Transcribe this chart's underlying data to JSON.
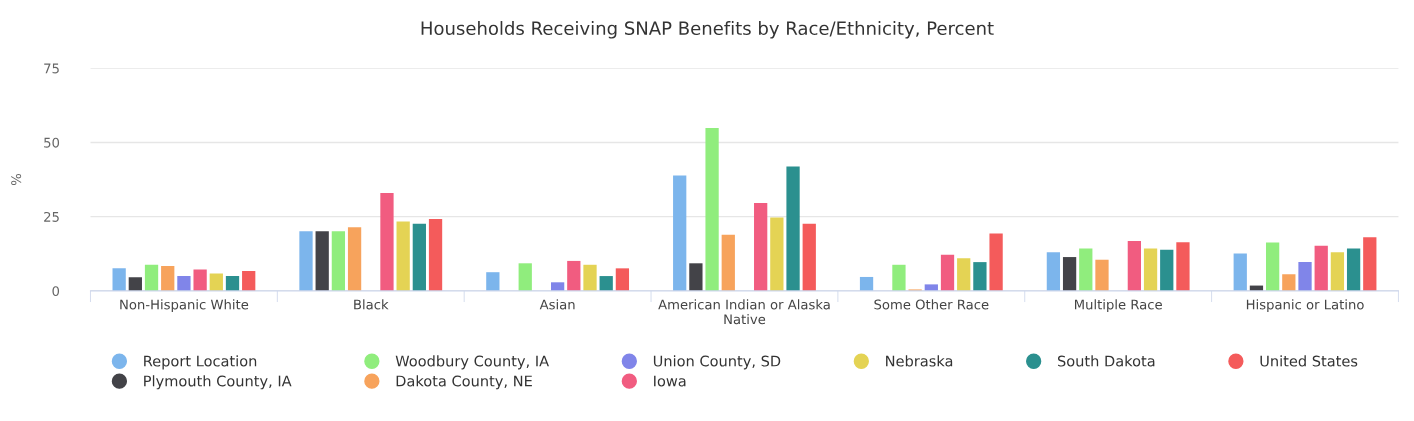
{
  "chart_data": {
    "type": "bar",
    "title": "Households Receiving SNAP Benefits by Race/Ethnicity, Percent",
    "ylabel": "%",
    "categories": [
      "Non-Hispanic White",
      "Black",
      "Asian",
      "American Indian or Alaska Native",
      "Some Other Race",
      "Multiple Race",
      "Hispanic or Latino"
    ],
    "series": [
      {
        "name": "Report Location",
        "color": "#7cb5ec",
        "values": [
          7.6,
          20.1,
          6.3,
          38.9,
          4.7,
          13.0,
          12.6
        ]
      },
      {
        "name": "Plymouth County, IA",
        "color": "#434348",
        "values": [
          4.6,
          20.1,
          null,
          9.3,
          null,
          11.4,
          1.8
        ]
      },
      {
        "name": "Woodbury County, IA",
        "color": "#90ed7d",
        "values": [
          8.8,
          20.1,
          9.3,
          54.9,
          8.8,
          14.3,
          16.3
        ]
      },
      {
        "name": "Dakota County, NE",
        "color": "#f7a35c",
        "values": [
          8.4,
          21.4,
          null,
          18.9,
          0.5,
          10.5,
          5.6
        ]
      },
      {
        "name": "Union County, SD",
        "color": "#8085e9",
        "values": [
          5.0,
          null,
          2.9,
          null,
          2.2,
          null,
          9.7
        ]
      },
      {
        "name": "Iowa",
        "color": "#f15c80",
        "values": [
          7.2,
          33.0,
          10.1,
          29.6,
          12.2,
          16.8,
          15.2
        ]
      },
      {
        "name": "Nebraska",
        "color": "#e4d354",
        "values": [
          5.9,
          23.4,
          8.8,
          24.7,
          11.0,
          14.3,
          13.0
        ]
      },
      {
        "name": "South Dakota",
        "color": "#2b908f",
        "values": [
          5.0,
          22.6,
          5.0,
          41.9,
          9.7,
          13.9,
          14.3
        ]
      },
      {
        "name": "United States",
        "color": "#f45b5b",
        "values": [
          6.7,
          24.2,
          7.6,
          22.6,
          19.3,
          16.4,
          18.1
        ]
      }
    ],
    "ylim": [
      0,
      75
    ],
    "yticks": [
      0,
      25,
      50,
      75
    ],
    "grid": "y",
    "legend": "bottom"
  }
}
